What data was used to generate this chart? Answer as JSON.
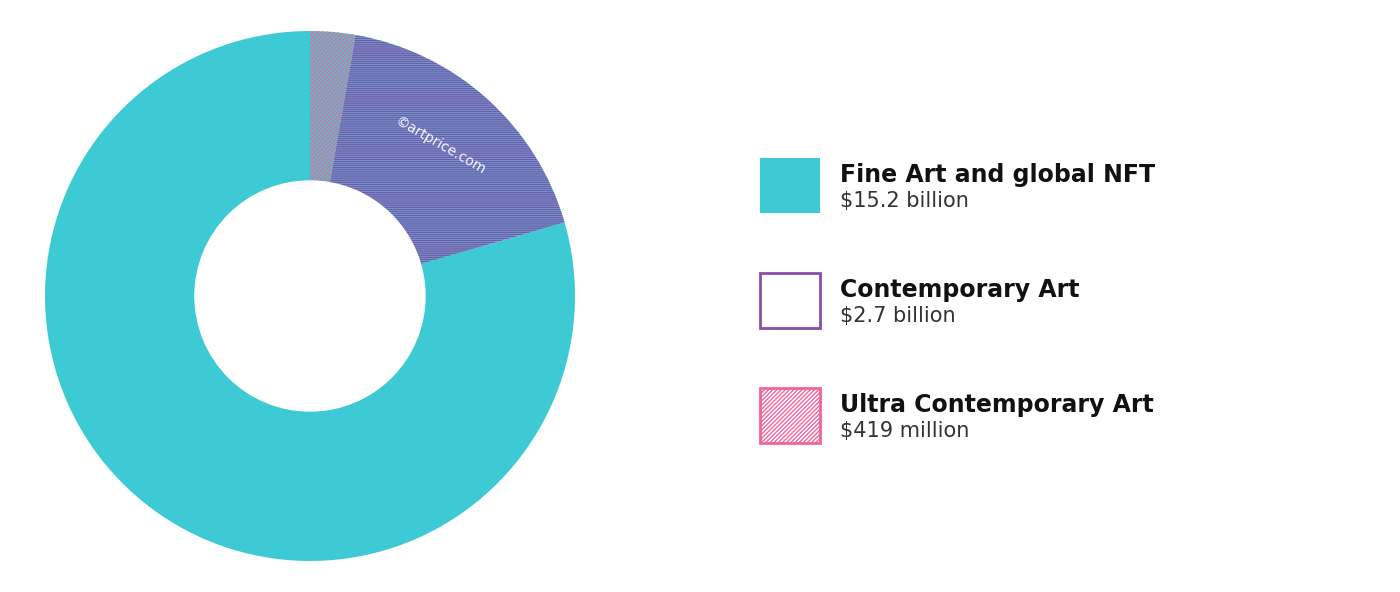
{
  "fine_art_value": 15.2,
  "contemporary_value": 2.7,
  "ultra_contemporary_value": 0.419,
  "fine_art_label": "Fine Art and global NFT",
  "fine_art_sublabel": "$15.2 billion",
  "contemporary_label": "Contemporary Art",
  "contemporary_sublabel": "$2.7 billion",
  "ultra_contemporary_label": "Ultra Contemporary Art",
  "ultra_contemporary_sublabel": "$419 million",
  "fine_art_color": "#3DCAD4",
  "hatch_contemporary_color": "#8B4DAB",
  "hatch_ultra_color": "#F2659A",
  "background_color": "#ffffff",
  "watermark": "©artprice.com",
  "watermark_color": "#ffffff",
  "legend_title_fontsize": 17,
  "legend_sublabel_fontsize": 15
}
